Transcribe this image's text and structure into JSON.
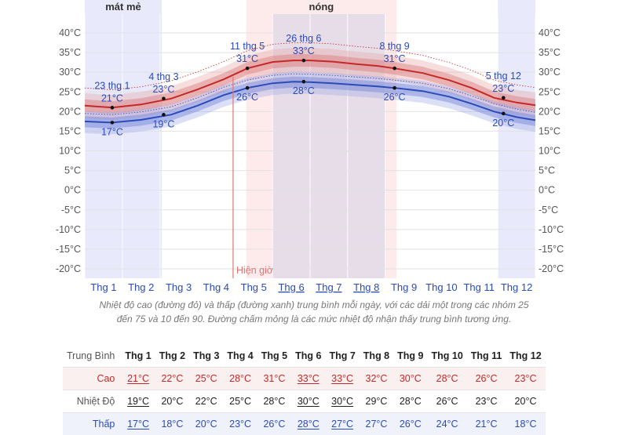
{
  "chart_data": {
    "type": "line",
    "y_ticks": [
      "40°C",
      "35°C",
      "30°C",
      "25°C",
      "20°C",
      "15°C",
      "10°C",
      "5°C",
      "0°C",
      "-5°C",
      "-10°C",
      "-15°C",
      "-20°C"
    ],
    "y_range": [
      -20,
      40
    ],
    "months": [
      "Thg 1",
      "Thg 2",
      "Thg 3",
      "Thg 4",
      "Thg 5",
      "Thg 6",
      "Thg 7",
      "Thg 8",
      "Thg 9",
      "Thg 10",
      "Thg 11",
      "Thg 12"
    ],
    "underlined_months": [
      5,
      6,
      7
    ],
    "seasons": [
      {
        "label": "mát mẻ",
        "start_month": 0.0,
        "end_month": 2.05,
        "type": "cool"
      },
      {
        "label": "",
        "start_month": 11.0,
        "end_month": 12.0,
        "type": "cool"
      },
      {
        "label": "nóng",
        "start_month": 4.3,
        "end_month": 8.3,
        "type": "hot"
      }
    ],
    "now_label": "Hiện giờ",
    "now_month": 3.95,
    "series": [
      {
        "color": "#c62828",
        "x": [
          0.0,
          0.73,
          1.5,
          2.3,
          3.0,
          3.7,
          4.33,
          5.0,
          5.55,
          6.0,
          6.6,
          7.2,
          7.8,
          8.25,
          9.0,
          9.7,
          10.3,
          10.9,
          11.5,
          12.0
        ],
        "y": [
          21.5,
          21.0,
          21.8,
          23.3,
          25.6,
          28.2,
          31.0,
          32.6,
          33.0,
          33.0,
          32.7,
          32.1,
          31.6,
          31.0,
          29.8,
          28.0,
          26.0,
          23.5,
          22.3,
          21.6
        ]
      },
      {
        "color": "#2a4bb8",
        "x": [
          0.0,
          0.73,
          1.5,
          2.3,
          3.0,
          3.7,
          4.33,
          5.0,
          5.55,
          6.0,
          6.6,
          7.2,
          7.8,
          8.25,
          9.0,
          9.7,
          10.3,
          10.9,
          11.5,
          12.0
        ],
        "y": [
          17.5,
          17.2,
          17.9,
          19.2,
          21.5,
          24.2,
          26.0,
          27.2,
          27.6,
          27.5,
          27.2,
          26.8,
          26.4,
          26.0,
          25.2,
          23.8,
          22.0,
          20.0,
          18.6,
          17.8
        ]
      }
    ],
    "callouts": [
      {
        "date": "23 thg 1",
        "high": "21°C",
        "low": "17°C",
        "x": 0.73,
        "yh": 21.0,
        "yl": 17.2
      },
      {
        "date": "4 thg 3",
        "high": "23°C",
        "low": "19°C",
        "x": 2.1,
        "yh": 23.3,
        "yl": 19.2
      },
      {
        "date": "11 thg 5",
        "high": "31°C",
        "low": "26°C",
        "x": 4.33,
        "yh": 31.0,
        "yl": 26.0
      },
      {
        "date": "26 thg 6",
        "high": "33°C",
        "low": "28°C",
        "x": 5.83,
        "yh": 33.0,
        "yl": 27.6
      },
      {
        "date": "8 thg 9",
        "high": "31°C",
        "low": "26°C",
        "x": 8.25,
        "yh": 31.0,
        "yl": 26.0
      },
      {
        "date": "5 thg 12",
        "high": "23°C",
        "low": "20°C",
        "x": 11.15,
        "yh": 23.5,
        "yl": 19.5
      }
    ]
  },
  "caption": {
    "line1": "Nhiệt độ cao (đường đỏ) và thấp (đường xanh) trung bình mỗi ngày, với các dải một trong các nhóm 25",
    "line2": "đến 75 và 10 đến 90. Đường chấm mỏng là các mức nhiệt độ nhận thấy trung bình tương ứng."
  },
  "table": {
    "header_label": "Trung Bình",
    "months": [
      "Thg 1",
      "Thg 2",
      "Thg 3",
      "Thg 4",
      "Thg 5",
      "Thg 6",
      "Thg 7",
      "Thg 8",
      "Thg 9",
      "Thg 10",
      "Thg 11",
      "Thg 12"
    ],
    "rows": [
      {
        "label": "Cao",
        "kind": "high",
        "values": [
          "21°C",
          "22°C",
          "25°C",
          "28°C",
          "31°C",
          "33°C",
          "33°C",
          "32°C",
          "30°C",
          "28°C",
          "26°C",
          "23°C"
        ]
      },
      {
        "label": "Nhiệt Độ",
        "kind": "mean",
        "values": [
          "19°C",
          "20°C",
          "22°C",
          "25°C",
          "28°C",
          "30°C",
          "30°C",
          "29°C",
          "28°C",
          "26°C",
          "23°C",
          "20°C"
        ]
      },
      {
        "label": "Thấp",
        "kind": "low",
        "values": [
          "17°C",
          "18°C",
          "20°C",
          "23°C",
          "26°C",
          "28°C",
          "27°C",
          "27°C",
          "26°C",
          "24°C",
          "21°C",
          "18°C"
        ]
      }
    ]
  }
}
